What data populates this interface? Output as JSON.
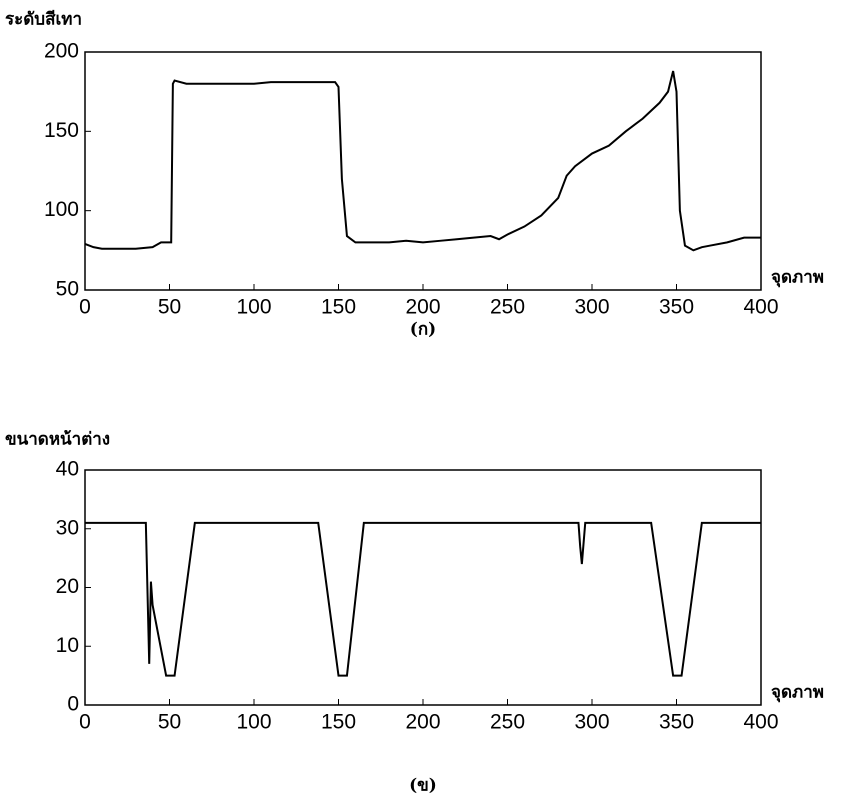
{
  "chart_data": [
    {
      "type": "line",
      "ylabel": "ระดับสีเทา",
      "xlabel": "จุดภาพ",
      "caption": "(ก)",
      "x": [
        0,
        5,
        10,
        20,
        30,
        40,
        45,
        50,
        51,
        52,
        53,
        60,
        70,
        80,
        90,
        100,
        110,
        120,
        130,
        140,
        148,
        150,
        152,
        155,
        160,
        170,
        180,
        190,
        200,
        210,
        220,
        230,
        240,
        245,
        250,
        260,
        270,
        280,
        285,
        290,
        300,
        310,
        320,
        330,
        340,
        345,
        348,
        350,
        352,
        355,
        360,
        365,
        370,
        380,
        390,
        400
      ],
      "series": [
        {
          "color": "#000000",
          "values": [
            79,
            77,
            76,
            76,
            76,
            77,
            80,
            80,
            80,
            180,
            182,
            180,
            180,
            180,
            180,
            180,
            181,
            181,
            181,
            181,
            181,
            178,
            120,
            84,
            80,
            80,
            80,
            81,
            80,
            81,
            82,
            83,
            84,
            82,
            85,
            90,
            97,
            108,
            122,
            128,
            136,
            141,
            150,
            158,
            168,
            175,
            188,
            175,
            100,
            78,
            75,
            77,
            78,
            80,
            83,
            83
          ]
        }
      ],
      "xlim": [
        0,
        400
      ],
      "ylim": [
        50,
        200
      ],
      "xticks": [
        0,
        50,
        100,
        150,
        200,
        250,
        300,
        350,
        400
      ],
      "yticks": [
        50,
        100,
        150,
        200
      ]
    },
    {
      "type": "line",
      "ylabel": "ขนาดหน้าต่าง",
      "xlabel": "จุดภาพ",
      "caption": "(ข)",
      "x": [
        0,
        36,
        38,
        39,
        40,
        48,
        53,
        65,
        138,
        150,
        155,
        165,
        292,
        293,
        294,
        296,
        335,
        348,
        353,
        365,
        400
      ],
      "series": [
        {
          "color": "#000000",
          "values": [
            31,
            31,
            7,
            21,
            17,
            5,
            5,
            31,
            31,
            5,
            5,
            31,
            31,
            27,
            24,
            31,
            31,
            5,
            5,
            31,
            31
          ]
        }
      ],
      "xlim": [
        0,
        400
      ],
      "ylim": [
        0,
        40
      ],
      "xticks": [
        0,
        50,
        100,
        150,
        200,
        250,
        300,
        350,
        400
      ],
      "yticks": [
        0,
        10,
        20,
        30,
        40
      ]
    }
  ]
}
